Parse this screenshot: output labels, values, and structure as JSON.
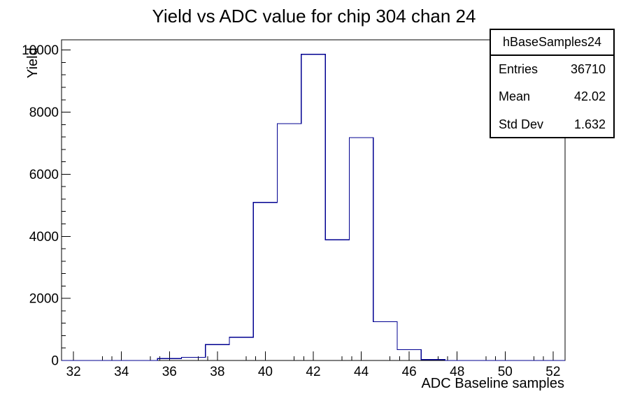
{
  "page": {
    "background": "#ffffff"
  },
  "chart_data": {
    "type": "bar",
    "subtype": "step-histogram",
    "title": "Yield vs ADC value for chip 304 chan 24",
    "xlabel": "ADC Baseline samples",
    "ylabel": "Yield",
    "categories": [
      32,
      33,
      34,
      35,
      36,
      37,
      38,
      39,
      40,
      41,
      42,
      43,
      44,
      45,
      46,
      47,
      48,
      49,
      50,
      51,
      52
    ],
    "values": [
      0,
      0,
      0,
      0,
      60,
      100,
      510,
      750,
      5090,
      7630,
      9860,
      3890,
      7180,
      1250,
      350,
      30,
      0,
      0,
      0,
      0,
      0
    ],
    "bin_width": 1,
    "xlim": [
      31.5,
      52.5
    ],
    "ylim": [
      0,
      10330
    ],
    "x_major_ticks": [
      32,
      34,
      36,
      38,
      40,
      42,
      44,
      46,
      48,
      50,
      52
    ],
    "x_minor_step": 0.4,
    "y_major_ticks": [
      0,
      2000,
      4000,
      6000,
      8000,
      10000
    ],
    "y_minor_step": 400,
    "grid": false,
    "legend_position": "none",
    "line_color": "#000090",
    "axis_color": "#000000",
    "text_color": "#000000"
  },
  "stats_box": {
    "title": "hBaseSamples24",
    "rows": [
      {
        "label": "Entries",
        "value": "36710"
      },
      {
        "label": "Mean",
        "value": "42.02"
      },
      {
        "label": "Std Dev",
        "value": "1.632"
      }
    ]
  }
}
